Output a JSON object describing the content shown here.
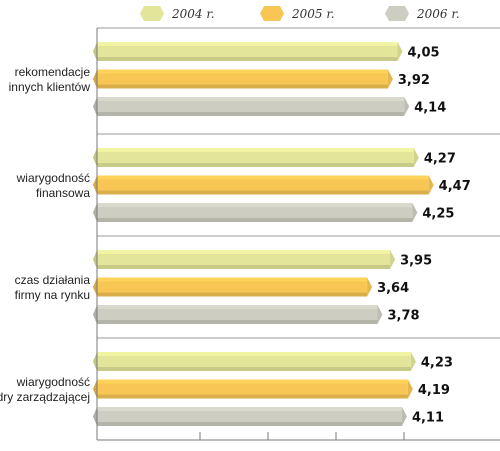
{
  "chart_data": {
    "type": "bar",
    "orientation": "horizontal",
    "categories": [
      [
        "rekomendacje",
        "innych klientów"
      ],
      [
        "wiarygodność",
        "finansowa"
      ],
      [
        "czas działania",
        "firmy na rynku"
      ],
      [
        "wiarygodność",
        "kadry zarządzającej"
      ]
    ],
    "series": [
      {
        "name": "2004 r.",
        "values": [
          4.05,
          4.27,
          3.95,
          4.23
        ],
        "value_labels": [
          "4,05",
          "4,27",
          "3,95",
          "4,23"
        ],
        "color": "#E3E69A"
      },
      {
        "name": "2005 r.",
        "values": [
          3.92,
          4.47,
          3.64,
          4.19
        ],
        "value_labels": [
          "3,92",
          "4,47",
          "3,64",
          "4,19"
        ],
        "color": "#F8C655"
      },
      {
        "name": "2006 r.",
        "values": [
          4.14,
          4.25,
          3.78,
          4.11
        ],
        "value_labels": [
          "4,14",
          "4,25",
          "3,78",
          "4,11"
        ],
        "color": "#CDCDC2"
      }
    ],
    "xlim": [
      0,
      5
    ],
    "legend_position": "top",
    "grid": false
  }
}
